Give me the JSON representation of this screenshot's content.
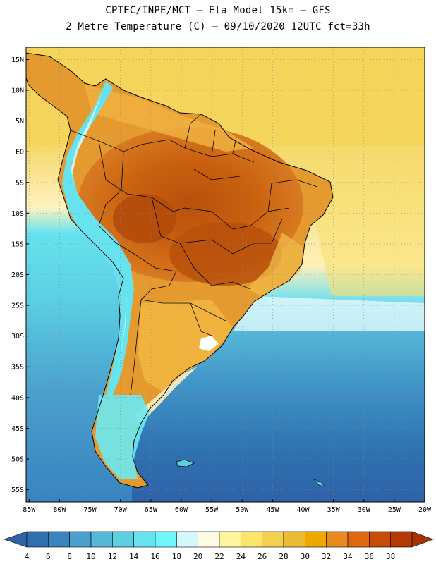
{
  "header": {
    "line1": "CPTEC/INPE/MCT –  Eta Model 15km – GFS",
    "line2": "2 Metre Temperature (C) – 09/10/2020 12UTC fct=33h"
  },
  "map": {
    "lat_labels": [
      "15N",
      "10N",
      "5N",
      "EQ",
      "5S",
      "10S",
      "15S",
      "20S",
      "25S",
      "30S",
      "35S",
      "40S",
      "45S",
      "50S",
      "55S"
    ],
    "lon_labels": [
      "85W",
      "80W",
      "75W",
      "70W",
      "65W",
      "60W",
      "55W",
      "50W",
      "45W",
      "40W",
      "35W",
      "30W",
      "25W",
      "20W"
    ],
    "lat_range": [
      -57,
      17
    ],
    "lon_range": [
      -85.5,
      -20
    ]
  },
  "colorbar": {
    "labels": [
      "4",
      "6",
      "8",
      "10",
      "12",
      "14",
      "16",
      "18",
      "20",
      "22",
      "24",
      "26",
      "28",
      "30",
      "32",
      "34",
      "36",
      "38"
    ],
    "colors": [
      "#2e6fb0",
      "#3883c0",
      "#4aa0cd",
      "#55b8d9",
      "#5ccfe3",
      "#66e3ee",
      "#6ff6fa",
      "#d3f7fb",
      "#fffbe2",
      "#fff59c",
      "#fbe56a",
      "#f4d050",
      "#edbc35",
      "#f0a800",
      "#ea8a1e",
      "#de6812",
      "#c94c06",
      "#b33a04"
    ],
    "under_color": "#2f62a8",
    "over_color": "#a83206"
  },
  "colors": {
    "land_hot": "#c0560f",
    "land_warm": "#e08a2a",
    "land_mild": "#efb745",
    "ocean_warm": "#f4d458",
    "ocean_cool": "#5ccfe3",
    "ocean_cold": "#2e6fb0"
  }
}
